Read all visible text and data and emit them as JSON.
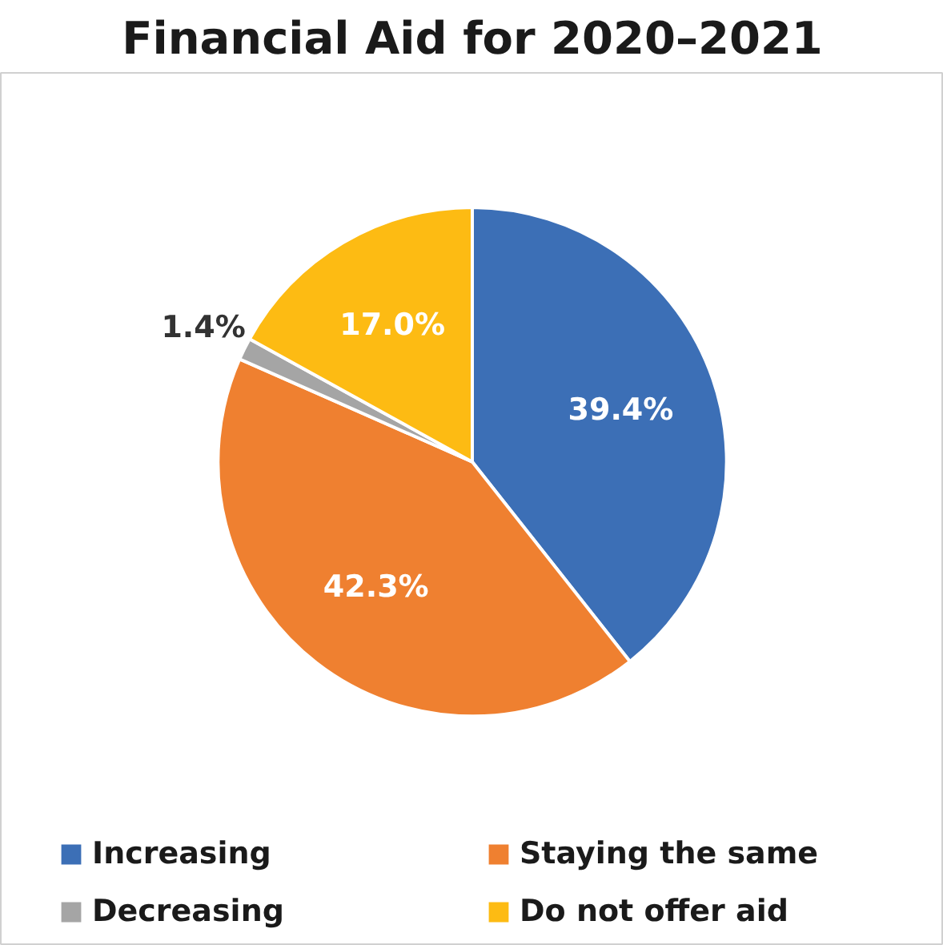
{
  "chart_data": {
    "type": "pie",
    "title": "Financial Aid for 2020–2021",
    "categories": [
      "Increasing",
      "Staying the same",
      "Decreasing",
      "Do not offer aid"
    ],
    "values": [
      39.4,
      42.3,
      1.4,
      17.0
    ],
    "colors": [
      "#3c6fb6",
      "#ef8030",
      "#a5a5a5",
      "#fdbb13"
    ],
    "value_labels": [
      "39.4%",
      "42.3%",
      "1.4%",
      "17.0%"
    ],
    "legend": "bottom"
  }
}
